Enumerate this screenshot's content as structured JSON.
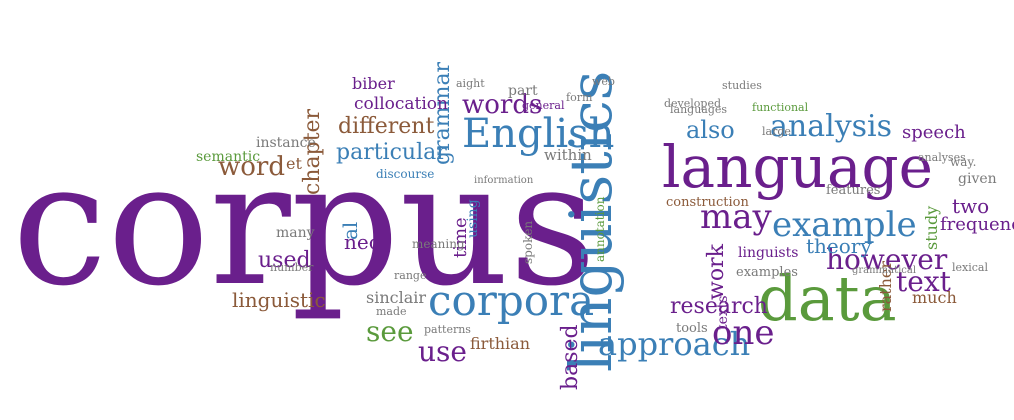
{
  "colors": {
    "purple": "#6a1f8c",
    "blue": "#3b7fb6",
    "green": "#5a9a3c",
    "brown": "#8b5a3a",
    "grey": "#7a7a7a"
  },
  "words": [
    {
      "id": "corpus",
      "text": "corpus",
      "color": "purple"
    },
    {
      "id": "linguistics",
      "text": "linguistics",
      "color": "blue"
    },
    {
      "id": "language",
      "text": "language",
      "color": "purple"
    },
    {
      "id": "data",
      "text": "data",
      "color": "green"
    },
    {
      "id": "English",
      "text": "English",
      "color": "blue"
    },
    {
      "id": "corpora",
      "text": "corpora",
      "color": "blue"
    },
    {
      "id": "analysis",
      "text": "analysis",
      "color": "blue"
    },
    {
      "id": "example",
      "text": "example",
      "color": "blue"
    },
    {
      "id": "may",
      "text": "may",
      "color": "purple"
    },
    {
      "id": "approach",
      "text": "approach",
      "color": "blue"
    },
    {
      "id": "one",
      "text": "one",
      "color": "purple"
    },
    {
      "id": "however",
      "text": "however",
      "color": "purple"
    },
    {
      "id": "text",
      "text": "text",
      "color": "purple"
    },
    {
      "id": "words",
      "text": "words",
      "color": "purple"
    },
    {
      "id": "grammar",
      "text": "grammar",
      "color": "blue"
    },
    {
      "id": "different",
      "text": "different",
      "color": "brown"
    },
    {
      "id": "word",
      "text": "word",
      "color": "brown"
    },
    {
      "id": "particular",
      "text": "particular",
      "color": "blue"
    },
    {
      "id": "chapter",
      "text": "chapter",
      "color": "brown"
    },
    {
      "id": "collocation",
      "text": "collocation",
      "color": "purple"
    },
    {
      "id": "biber",
      "text": "biber",
      "color": "purple"
    },
    {
      "id": "also",
      "text": "also",
      "color": "blue"
    },
    {
      "id": "speech",
      "text": "speech",
      "color": "purple"
    },
    {
      "id": "work",
      "text": "work",
      "color": "purple"
    },
    {
      "id": "theory",
      "text": "theory",
      "color": "blue"
    },
    {
      "id": "research",
      "text": "research",
      "color": "purple"
    },
    {
      "id": "see",
      "text": "see",
      "color": "green"
    },
    {
      "id": "use",
      "text": "use",
      "color": "purple"
    },
    {
      "id": "based",
      "text": "based",
      "color": "purple"
    },
    {
      "id": "used",
      "text": "used",
      "color": "purple"
    },
    {
      "id": "neo",
      "text": "neo",
      "color": "purple"
    },
    {
      "id": "al",
      "text": "al",
      "color": "blue"
    },
    {
      "id": "semantic",
      "text": "semantic",
      "color": "green"
    },
    {
      "id": "instance",
      "text": "instance",
      "color": "grey"
    },
    {
      "id": "et",
      "text": "et",
      "color": "brown"
    },
    {
      "id": "linguistic",
      "text": "linguistic",
      "color": "brown"
    },
    {
      "id": "sinclair",
      "text": "sinclair",
      "color": "grey"
    },
    {
      "id": "firthian",
      "text": "firthian",
      "color": "brown"
    },
    {
      "id": "many",
      "text": "many",
      "color": "grey"
    },
    {
      "id": "time",
      "text": "time",
      "color": "purple"
    },
    {
      "id": "within",
      "text": "within",
      "color": "grey"
    },
    {
      "id": "using",
      "text": "using",
      "color": "blue"
    },
    {
      "id": "frequency",
      "text": "frequency",
      "color": "purple"
    },
    {
      "id": "two",
      "text": "two",
      "color": "purple"
    },
    {
      "id": "study",
      "text": "study",
      "color": "green"
    },
    {
      "id": "given",
      "text": "given",
      "color": "grey"
    },
    {
      "id": "much",
      "text": "much",
      "color": "brown"
    },
    {
      "id": "features",
      "text": "features",
      "color": "grey"
    },
    {
      "id": "linguists",
      "text": "linguists",
      "color": "purple"
    },
    {
      "id": "examples",
      "text": "examples",
      "color": "grey"
    },
    {
      "id": "rather",
      "text": "rather",
      "color": "brown"
    },
    {
      "id": "texts",
      "text": "texts",
      "color": "purple"
    },
    {
      "id": "tools",
      "text": "tools",
      "color": "grey"
    },
    {
      "id": "construction",
      "text": "construction",
      "color": "brown"
    },
    {
      "id": "annotation",
      "text": "annotation",
      "color": "green"
    },
    {
      "id": "part",
      "text": "part",
      "color": "grey"
    },
    {
      "id": "discourse",
      "text": "discourse",
      "color": "blue"
    },
    {
      "id": "information",
      "text": "information",
      "color": "grey"
    },
    {
      "id": "meaning",
      "text": "meaning",
      "color": "grey"
    },
    {
      "id": "patterns",
      "text": "patterns",
      "color": "grey"
    },
    {
      "id": "developed",
      "text": "developed",
      "color": "grey"
    },
    {
      "id": "functional",
      "text": "functional",
      "color": "green"
    },
    {
      "id": "studies",
      "text": "studies",
      "color": "grey"
    },
    {
      "id": "form",
      "text": "form",
      "color": "grey"
    },
    {
      "id": "general",
      "text": "general",
      "color": "purple"
    },
    {
      "id": "web",
      "text": "web",
      "color": "grey"
    },
    {
      "id": "spoken",
      "text": "spoken",
      "color": "grey"
    },
    {
      "id": "number",
      "text": "number",
      "color": "grey"
    },
    {
      "id": "made",
      "text": "made",
      "color": "grey"
    },
    {
      "id": "range",
      "text": "range",
      "color": "grey"
    },
    {
      "id": "lexical",
      "text": "lexical",
      "color": "grey"
    },
    {
      "id": "way",
      "text": "way.",
      "color": "grey"
    },
    {
      "id": "large",
      "text": "large",
      "color": "grey"
    },
    {
      "id": "languages",
      "text": "languages",
      "color": "grey"
    },
    {
      "id": "analyses",
      "text": "analyses",
      "color": "grey"
    },
    {
      "id": "grammatical",
      "text": "grammatical",
      "color": "grey"
    },
    {
      "id": "aight",
      "text": "aight",
      "color": "grey"
    }
  ]
}
